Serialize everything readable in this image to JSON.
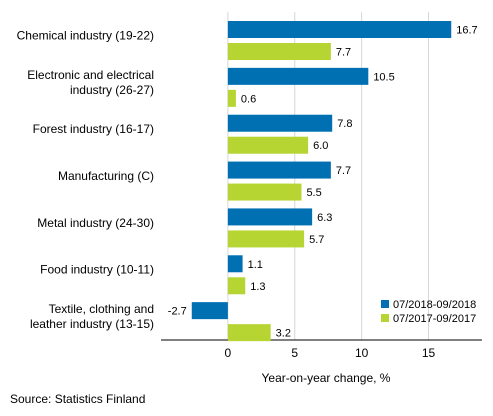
{
  "chart_data": {
    "type": "bar",
    "orientation": "horizontal",
    "categories": [
      [
        "Chemical industry (19-22)"
      ],
      [
        "Electronic and electrical",
        "industry (26-27)"
      ],
      [
        "Forest industry (16-17)"
      ],
      [
        "Manufacturing (C)"
      ],
      [
        "Metal industry (24-30)"
      ],
      [
        "Food industry (10-11)"
      ],
      [
        "Textile, clothing and",
        "leather industry (13-15)"
      ]
    ],
    "series": [
      {
        "name": "07/2018-09/2018",
        "color": "#0070b3",
        "values": [
          16.7,
          10.5,
          7.8,
          7.7,
          6.3,
          1.1,
          -2.7
        ]
      },
      {
        "name": "07/2017-09/2017",
        "color": "#b6d533",
        "values": [
          7.7,
          0.6,
          6.0,
          5.5,
          5.7,
          1.3,
          3.2
        ]
      }
    ],
    "xlabel": "Year-on-year change, %",
    "xlim": [
      -5,
      19
    ],
    "xticks": [
      0,
      5,
      10,
      15
    ],
    "legend_position": "bottom-right",
    "grid": true
  },
  "source": "Source: Statistics Finland"
}
